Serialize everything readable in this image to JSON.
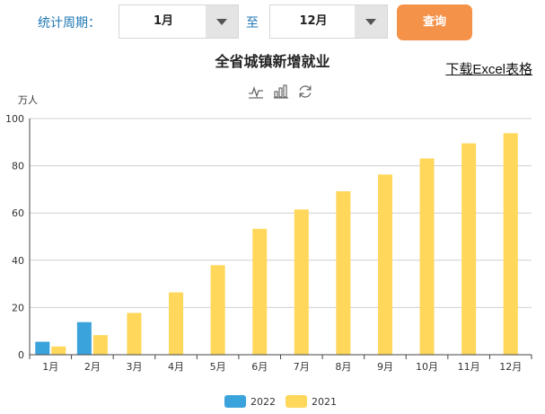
{
  "toolbar": {
    "period_label": "统计周期：",
    "start_month": "1月",
    "to_label": "至",
    "end_month": "12月",
    "query_label": "查询"
  },
  "download_label": "下载Excel表格",
  "tool_icons": [
    "line-chart-icon",
    "bar-chart-icon",
    "refresh-icon"
  ],
  "colors": {
    "series_2022": "#3ba3dc",
    "series_2021": "#ffd75a",
    "query_button": "#f5924a"
  },
  "chart_data": {
    "type": "bar",
    "title": "全省城镇新增就业",
    "ylabel": "万人",
    "ylim": [
      0,
      100
    ],
    "yticks": [
      0,
      20,
      40,
      60,
      80,
      100
    ],
    "grid": true,
    "legend": "bottom",
    "categories": [
      "1月",
      "2月",
      "3月",
      "4月",
      "5月",
      "6月",
      "7月",
      "8月",
      "9月",
      "10月",
      "11月",
      "12月"
    ],
    "series": [
      {
        "name": "2022",
        "color": "#3ba3dc",
        "values": [
          5.5,
          13.8,
          null,
          null,
          null,
          null,
          null,
          null,
          null,
          null,
          null,
          null
        ]
      },
      {
        "name": "2021",
        "color": "#ffd75a",
        "values": [
          3.5,
          8.3,
          17.7,
          26.4,
          37.9,
          53.3,
          61.5,
          69.2,
          76.3,
          83.1,
          89.5,
          93.8
        ]
      }
    ]
  }
}
